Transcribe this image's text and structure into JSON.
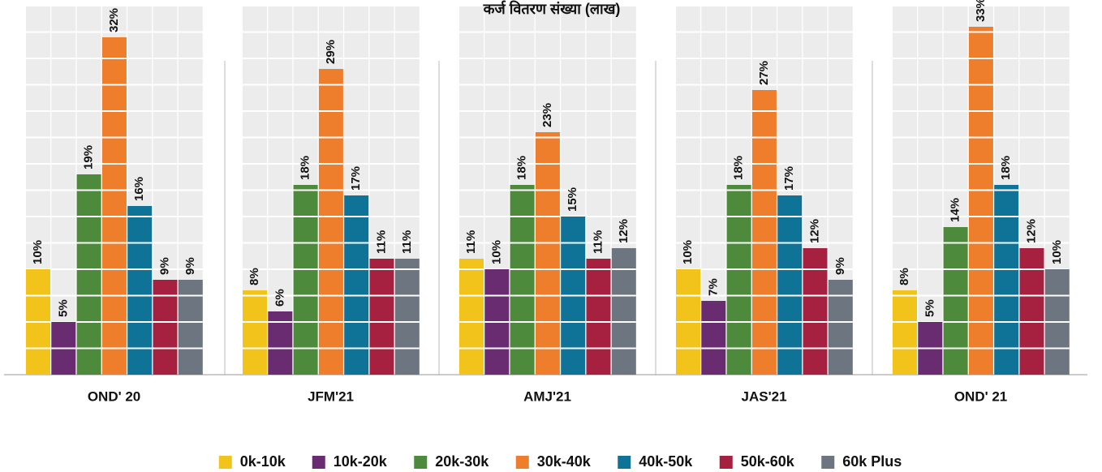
{
  "chart_data": {
    "type": "bar",
    "title": "कर्ज वितरण संख्या (लाख)",
    "categories": [
      "OND' 20",
      "JFM'21",
      "AMJ'21",
      "JAS'21",
      "OND' 21"
    ],
    "series": [
      {
        "name": "0k-10k",
        "color": "#f2c31b",
        "values": [
          10,
          8,
          11,
          10,
          8
        ],
        "value_labels": [
          "10%",
          "8%",
          "11%",
          "10%",
          "8%"
        ]
      },
      {
        "name": "10k-20k",
        "color": "#6a2c70",
        "values": [
          5,
          6,
          10,
          7,
          5
        ],
        "value_labels": [
          "5%",
          "6%",
          "10%",
          "7%",
          "5%"
        ]
      },
      {
        "name": "20k-30k",
        "color": "#4d8a3b",
        "values": [
          19,
          18,
          18,
          18,
          14
        ],
        "value_labels": [
          "19%",
          "18%",
          "18%",
          "18%",
          "14%"
        ]
      },
      {
        "name": "30k-40k",
        "color": "#ee7d2c",
        "values": [
          32,
          29,
          23,
          27,
          33
        ],
        "value_labels": [
          "32%",
          "29%",
          "23%",
          "27%",
          "33%"
        ]
      },
      {
        "name": "40k-50k",
        "color": "#0f7398",
        "values": [
          16,
          17,
          15,
          17,
          18
        ],
        "value_labels": [
          "16%",
          "17%",
          "15%",
          "17%",
          "18%"
        ]
      },
      {
        "name": "50k-60k",
        "color": "#a6203f",
        "values": [
          9,
          11,
          11,
          12,
          12
        ],
        "value_labels": [
          "9%",
          "11%",
          "11%",
          "12%",
          "12%"
        ]
      },
      {
        "name": "60k Plus",
        "color": "#6d7580",
        "values": [
          9,
          11,
          12,
          9,
          10
        ],
        "value_labels": [
          "9%",
          "11%",
          "12%",
          "9%",
          "10%"
        ]
      }
    ],
    "legend": "bottom"
  }
}
